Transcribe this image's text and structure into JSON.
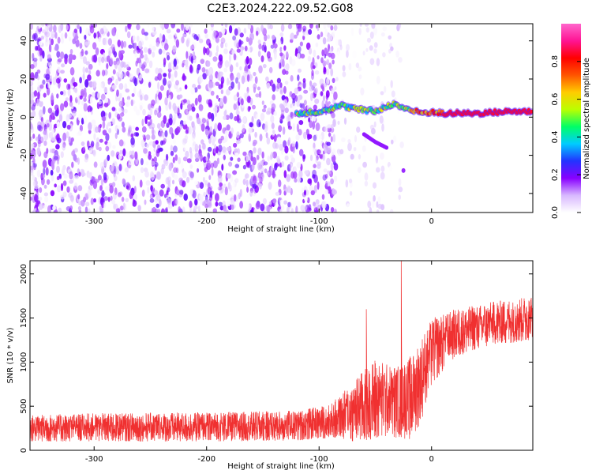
{
  "title": "C2E3.2024.222.09.52.G08",
  "chart_data": [
    {
      "type": "heatmap",
      "xlabel": "Height of straight line (km)",
      "ylabel": "Frequency (Hz)",
      "xlim": [
        -357,
        90
      ],
      "ylim": [
        -50,
        49
      ],
      "xticks": [
        -300,
        -200,
        -100,
        0
      ],
      "yticks": [
        -40,
        -20,
        0,
        20,
        40
      ],
      "colorbar": {
        "label": "Normalized spectral amplitude",
        "range": [
          0.0,
          1.0
        ],
        "ticks": [
          "0.0",
          "0.2",
          "0.4",
          "0.6",
          "0.8"
        ],
        "tick_values": [
          0.0,
          0.2,
          0.4,
          0.6,
          0.8
        ],
        "colors": [
          "#ffffff",
          "#d8b8ff",
          "#8800ff",
          "#2233ff",
          "#00ccff",
          "#00ff66",
          "#bbff00",
          "#ffcc00",
          "#ff5500",
          "#ff0000",
          "#ff1493",
          "#ff66cc"
        ]
      },
      "features": {
        "noise_region_x": [
          -357,
          -85
        ],
        "noise_amplitude": [
          0.0,
          0.1
        ],
        "main_trace": [
          [
            -120,
            2
          ],
          [
            -100,
            3
          ],
          [
            -80,
            6
          ],
          [
            -65,
            4
          ],
          [
            -50,
            3
          ],
          [
            -35,
            7
          ],
          [
            -25,
            5
          ],
          [
            -15,
            3
          ],
          [
            -5,
            2
          ],
          [
            0,
            3
          ],
          [
            10,
            2
          ],
          [
            40,
            2
          ],
          [
            70,
            3
          ],
          [
            90,
            3
          ]
        ],
        "secondary_trace": [
          [
            -60,
            -9
          ],
          [
            -50,
            -13
          ],
          [
            -40,
            -16
          ]
        ],
        "isolated_blob": [
          -25,
          -28
        ]
      }
    },
    {
      "type": "line",
      "xlabel": "Height of straight line (km)",
      "ylabel": "SNR (10 * v/v)",
      "xlim": [
        -357,
        90
      ],
      "ylim": [
        0,
        2150
      ],
      "xticks": [
        -300,
        -200,
        -100,
        0
      ],
      "yticks": [
        0,
        500,
        1000,
        1500,
        2000
      ],
      "series": [
        {
          "name": "SNR",
          "color": "#f03030",
          "envelope_x": [
            -357,
            -300,
            -200,
            -120,
            -90,
            -70,
            -50,
            -35,
            -20,
            -10,
            0,
            20,
            40,
            60,
            90
          ],
          "envelope_min": [
            100,
            100,
            100,
            110,
            140,
            100,
            120,
            150,
            120,
            300,
            750,
            1050,
            1150,
            1200,
            1250
          ],
          "envelope_max": [
            400,
            420,
            430,
            450,
            520,
            780,
            1050,
            950,
            1050,
            1250,
            1500,
            1600,
            1650,
            1700,
            1750
          ],
          "spikes": [
            [
              -58,
              1600
            ],
            [
              -27,
              2150
            ]
          ]
        }
      ]
    }
  ]
}
